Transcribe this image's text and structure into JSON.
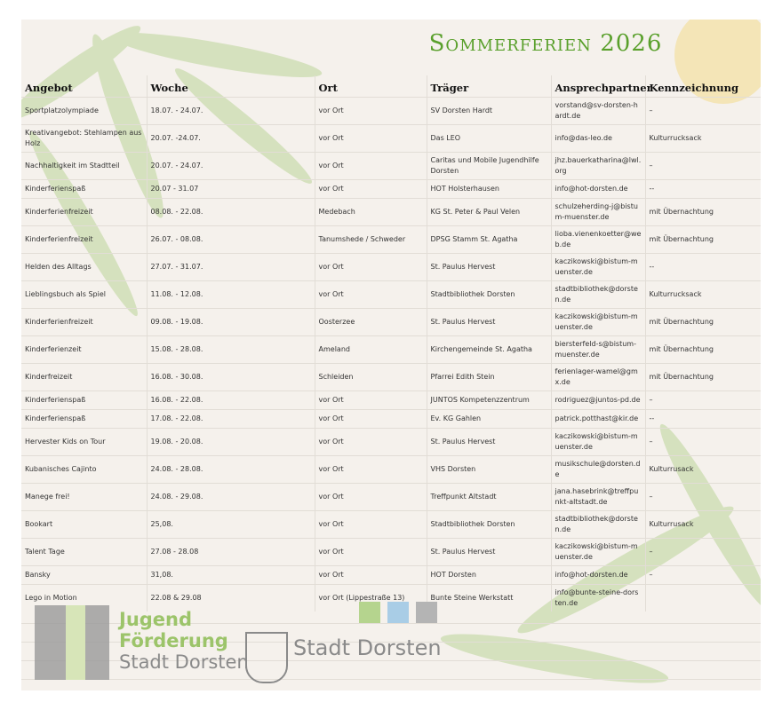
{
  "title": "Sommerferien 2026",
  "table": {
    "headers": [
      "Angebot",
      "Woche",
      "Ort",
      "Träger",
      "Ansprechpartner",
      "Kennzeichnung"
    ],
    "rows": [
      [
        "Sportplatzolympiade",
        "18.07. - 24.07.",
        "vor Ort",
        "SV Dorsten Hardt",
        "vorstand@sv-dorsten-hardt.de",
        "–"
      ],
      [
        "Kreativangebot: Stehlampen aus Holz",
        "20.07. -24.07.",
        "vor Ort",
        "Das LEO",
        "info@das-leo.de",
        "Kulturrucksack"
      ],
      [
        "Nachhaltigkeit im Stadtteil",
        "20.07. - 24.07.",
        "vor Ort",
        "Caritas und Mobile Jugendhilfe Dorsten",
        "jhz.bauerkatharina@lwl.org",
        "–"
      ],
      [
        "Kinderferienspaß",
        "20.07 - 31.07",
        "vor Ort",
        "HOT Holsterhausen",
        "info@hot-dorsten.de",
        "--"
      ],
      [
        "Kinderferienfreizeit",
        "08.08. - 22.08.",
        "Medebach",
        "KG St. Peter & Paul Velen",
        "schulzeherding-j@bistum-muenster.de",
        "mit Übernachtung"
      ],
      [
        "Kinderferienfreizeit",
        "26.07. - 08.08.",
        "Tanumshede / Schweder",
        "DPSG Stamm St. Agatha",
        "lioba.vienenkoetter@web.de",
        "mit Übernachtung"
      ],
      [
        "Helden des Alltags",
        "27.07. - 31.07.",
        "vor Ort",
        "St. Paulus Hervest",
        "kaczikowski@bistum-muenster.de",
        "--"
      ],
      [
        "Lieblingsbuch als Spiel",
        "11.08. - 12.08.",
        "vor Ort",
        "Stadtbibliothek Dorsten",
        "stadtbibliothek@dorsten.de",
        "Kulturrucksack"
      ],
      [
        "Kinderferienfreizeit",
        "09.08. - 19.08.",
        "Oosterzee",
        "St. Paulus Hervest",
        "kaczikowski@bistum-muenster.de",
        "mit Übernachtung"
      ],
      [
        "Kinderferienzeit",
        "15.08. - 28.08.",
        "Ameland",
        "Kirchengemeinde St. Agatha",
        "biersterfeld-s@bistum-muenster.de",
        "mit Übernachtung"
      ],
      [
        "Kinderfreizeit",
        "16.08. - 30.08.",
        "Schleiden",
        "Pfarrei Edith Stein",
        "ferienlager-wamel@gmx.de",
        "mit Übernachtung"
      ],
      [
        "Kinderferienspaß",
        "16.08. - 22.08.",
        "vor Ort",
        "JUNTOS Kompetenzzentrum",
        "rodriguez@juntos-pd.de",
        "–"
      ],
      [
        "Kinderferienspaß",
        "17.08. - 22.08.",
        "vor Ort",
        "Ev. KG Gahlen",
        "patrick.potthast@kir.de",
        "--"
      ],
      [
        "Hervester Kids on Tour",
        "19.08. - 20.08.",
        "vor Ort",
        "St. Paulus Hervest",
        "kaczikowski@bistum-muenster.de",
        "–"
      ],
      [
        "Kubanisches Cajinto",
        "24.08. - 28.08.",
        "vor Ort",
        "VHS Dorsten",
        "musikschule@dorsten.de",
        "Kulturrusack"
      ],
      [
        "Manege frei!",
        "24.08. - 29.08.",
        "vor Ort",
        "Treffpunkt Altstadt",
        "jana.hasebrink@treffpunkt-altstadt.de",
        "–"
      ],
      [
        "Bookart",
        "25,08.",
        "vor Ort",
        "Stadtbibliothek Dorsten",
        "stadtbibliothek@dorsten.de",
        "Kulturrusack"
      ],
      [
        "Talent Tage",
        "27.08 - 28.08",
        "vor Ort",
        "St. Paulus Hervest",
        "kaczikowski@bistum-muenster.de",
        "–"
      ],
      [
        "Bansky",
        "31,08.",
        "vor Ort",
        "HOT Dorsten",
        "info@hot-dorsten.de",
        "–"
      ],
      [
        "Lego in Motion",
        "22.08 & 29.08",
        "vor Ort (Lippestraße 13)",
        "Bunte Steine Werkstatt",
        "info@bunte-steine-dorsten.de",
        ""
      ]
    ]
  },
  "logos": {
    "jugend_line1": "Jugend",
    "jugend_line2": "Förderung",
    "jugend_line3": "Stadt Dorsten",
    "stadt": "Stadt Dorsten"
  }
}
